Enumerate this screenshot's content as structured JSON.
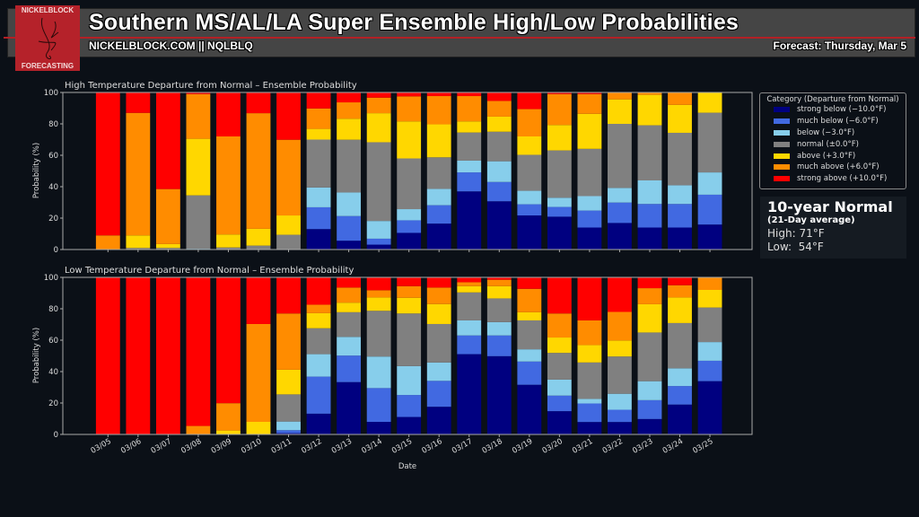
{
  "header": {
    "title": "Southern MS/AL/LA Super Ensemble High/Low Probabilities",
    "site": "NICKELBLOCK.COM || NQLBLQ",
    "forecast": "Forecast: Thursday, Mar 5",
    "logo_top": "NICKELBLOCK",
    "logo_bottom": "FORECASTING"
  },
  "legend": {
    "title": "Category (Departure from Normal)",
    "items": [
      {
        "label": "strong below (−10.0°F)",
        "color": "#000080"
      },
      {
        "label": "much below (−6.0°F)",
        "color": "#4169e1"
      },
      {
        "label": "below (−3.0°F)",
        "color": "#87ceeb"
      },
      {
        "label": "normal (±0.0°F)",
        "color": "#808080"
      },
      {
        "label": "above (+3.0°F)",
        "color": "#ffd700"
      },
      {
        "label": "much above (+6.0°F)",
        "color": "#ff8c00"
      },
      {
        "label": "strong above (+10.0°F)",
        "color": "#ff0000"
      }
    ]
  },
  "normal_box": {
    "title": "10-year Normal",
    "subtitle": "(21-Day average)",
    "high": "High: 71°F",
    "low": "Low:  54°F"
  },
  "chart_data": [
    {
      "type": "bar",
      "stacked": true,
      "title": "High Temperature Departure from Normal – Ensemble Probability",
      "xlabel": "",
      "ylabel": "Probability (%)",
      "ylim": [
        0,
        100
      ],
      "yticks": [
        "0",
        "20",
        "40",
        "60",
        "80",
        "100"
      ],
      "categories": [
        "03/05",
        "03/06",
        "03/07",
        "03/08",
        "03/09",
        "03/10",
        "03/11",
        "03/12",
        "03/13",
        "03/14",
        "03/15",
        "03/16",
        "03/17",
        "03/18",
        "03/19",
        "03/20",
        "03/21",
        "03/22",
        "03/23",
        "03/24",
        "03/25"
      ],
      "series": [
        {
          "name": "strong below",
          "values": [
            0,
            0,
            0,
            0,
            0,
            0,
            0,
            13,
            5.6,
            3.1,
            10.6,
            16.5,
            37,
            30.7,
            21.7,
            20.9,
            14,
            16.9,
            14,
            14,
            15.9
          ]
        },
        {
          "name": "much below",
          "values": [
            0,
            0,
            0,
            0,
            0,
            0,
            0,
            13.9,
            15.7,
            3.8,
            8,
            11.7,
            12.1,
            12.3,
            7.1,
            6.2,
            10.8,
            13,
            15,
            15,
            19
          ]
        },
        {
          "name": "below",
          "values": [
            0,
            0,
            0,
            0.5,
            0,
            0,
            0,
            12.6,
            15,
            11.3,
            7.1,
            10.4,
            7.5,
            13.2,
            8.6,
            5.9,
            9.2,
            9.3,
            15,
            11.9,
            14.2
          ]
        },
        {
          "name": "normal",
          "values": [
            0,
            1,
            1,
            34,
            1.3,
            2.5,
            9.4,
            30.5,
            33.6,
            50.1,
            32.3,
            20.1,
            17.9,
            18.8,
            22.9,
            30.1,
            30.1,
            40.8,
            35.1,
            33.4,
            38
          ]
        },
        {
          "name": "above",
          "values": [
            0,
            8,
            2.5,
            36,
            8.3,
            10.7,
            12.3,
            6.8,
            13.4,
            18.5,
            23.6,
            21,
            7.1,
            9.6,
            11.7,
            16.2,
            22.3,
            15.6,
            19.4,
            17.8,
            12.9
          ]
        },
        {
          "name": "much above",
          "values": [
            9,
            78,
            35,
            28.5,
            62.4,
            73.6,
            48.2,
            13,
            10.4,
            9.9,
            15.9,
            18,
            16.1,
            10,
            17.4,
            19.7,
            12.6,
            4.4,
            1.5,
            7.9,
            0
          ]
        },
        {
          "name": "strong above",
          "values": [
            91,
            13,
            61.5,
            1,
            28,
            13.2,
            30.1,
            10.2,
            6.3,
            3.3,
            2.5,
            2.3,
            2.3,
            5.4,
            10.6,
            1,
            1,
            0,
            0,
            0,
            0
          ]
        }
      ]
    },
    {
      "type": "bar",
      "stacked": true,
      "title": "Low Temperature Departure from Normal – Ensemble Probability",
      "xlabel": "Date",
      "ylabel": "Probability (%)",
      "ylim": [
        0,
        100
      ],
      "yticks": [
        "0",
        "20",
        "40",
        "60",
        "80",
        "100"
      ],
      "categories": [
        "03/05",
        "03/06",
        "03/07",
        "03/08",
        "03/09",
        "03/10",
        "03/11",
        "03/12",
        "03/13",
        "03/14",
        "03/15",
        "03/16",
        "03/17",
        "03/18",
        "03/19",
        "03/20",
        "03/21",
        "03/22",
        "03/23",
        "03/24",
        "03/25"
      ],
      "series": [
        {
          "name": "strong below",
          "values": [
            0,
            0,
            0,
            0,
            0,
            0,
            0.8,
            13.2,
            33.3,
            8,
            11.1,
            17.6,
            51.1,
            49.8,
            31.6,
            14.8,
            7.9,
            7.9,
            9.8,
            19,
            33.9
          ]
        },
        {
          "name": "much below",
          "values": [
            0,
            0,
            0,
            0,
            0,
            0,
            1.9,
            23.6,
            16.9,
            21.5,
            14,
            16.5,
            11.9,
            13.2,
            14.8,
            9.9,
            11.8,
            7.8,
            12,
            11.8,
            13
          ]
        },
        {
          "name": "below",
          "values": [
            0,
            0,
            0,
            0,
            0,
            0,
            5.5,
            14.3,
            11.9,
            20.1,
            18.4,
            11.7,
            9.6,
            8.5,
            7.8,
            10.2,
            2.9,
            10.2,
            12.1,
            11.3,
            11.9
          ]
        },
        {
          "name": "normal",
          "values": [
            0,
            0,
            0,
            0,
            0,
            0,
            17.3,
            16.5,
            15.7,
            29.1,
            33.5,
            24.5,
            17.8,
            15.1,
            18.4,
            17,
            23.2,
            23.7,
            31,
            28.8,
            22
          ]
        },
        {
          "name": "above",
          "values": [
            0,
            0,
            0,
            0,
            2.5,
            8,
            15.7,
            9.6,
            6.1,
            8.5,
            10,
            12.7,
            4,
            7.8,
            5.2,
            9.8,
            11.1,
            10.2,
            18,
            16.3,
            11.2
          ]
        },
        {
          "name": "much above",
          "values": [
            0,
            0,
            0,
            5.4,
            17.4,
            62.3,
            35.8,
            5.4,
            9.6,
            4.6,
            7.4,
            10.5,
            2.5,
            4.1,
            14.9,
            15.3,
            15.7,
            18.2,
            10.2,
            7.8,
            8
          ]
        },
        {
          "name": "strong above",
          "values": [
            100,
            100,
            100,
            94.6,
            80.1,
            29.7,
            23,
            17.4,
            6.5,
            8.2,
            5.6,
            6.5,
            3.1,
            1.5,
            7.3,
            23,
            27.4,
            22,
            6.9,
            5,
            0
          ]
        }
      ]
    }
  ]
}
